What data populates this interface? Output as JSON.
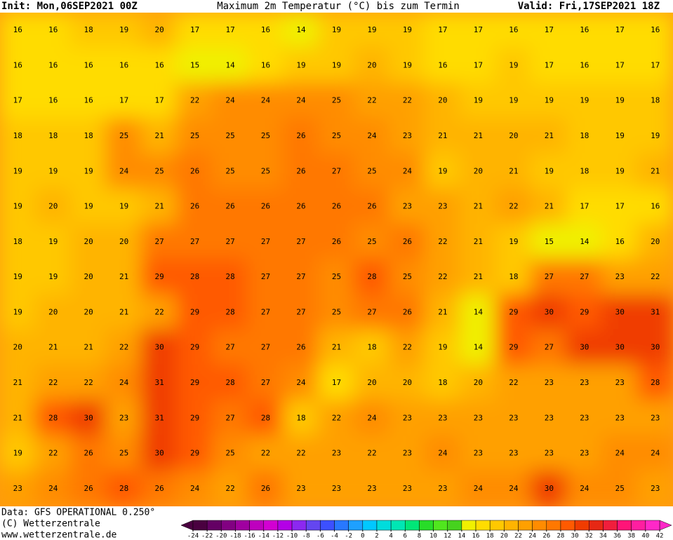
{
  "header": {
    "init": "Init: Mon,06SEP2021 00Z",
    "title": "Maximum 2m Temperatur (°C) bis zum Termin",
    "valid": "Valid: Fri,17SEP2021 18Z"
  },
  "map": {
    "values": [
      [
        16,
        16,
        18,
        19,
        20,
        17,
        17,
        16,
        14,
        19,
        19,
        19,
        17,
        17,
        16,
        17,
        16,
        17,
        16
      ],
      [
        16,
        16,
        16,
        16,
        16,
        15,
        14,
        16,
        19,
        19,
        20,
        19,
        16,
        17,
        19,
        17,
        16,
        17,
        17
      ],
      [
        17,
        16,
        16,
        17,
        17,
        22,
        24,
        24,
        24,
        25,
        22,
        22,
        20,
        19,
        19,
        19,
        19,
        19,
        18
      ],
      [
        18,
        18,
        18,
        25,
        21,
        25,
        25,
        25,
        26,
        25,
        24,
        23,
        21,
        21,
        20,
        21,
        18,
        19,
        19
      ],
      [
        19,
        19,
        19,
        24,
        25,
        26,
        25,
        25,
        26,
        27,
        25,
        24,
        19,
        20,
        21,
        19,
        18,
        19,
        21
      ],
      [
        19,
        20,
        19,
        19,
        21,
        26,
        26,
        26,
        26,
        26,
        26,
        23,
        23,
        21,
        22,
        21,
        17,
        17,
        16
      ],
      [
        18,
        19,
        20,
        20,
        27,
        27,
        27,
        27,
        27,
        26,
        25,
        26,
        22,
        21,
        19,
        15,
        14,
        16,
        20
      ],
      [
        19,
        19,
        20,
        21,
        29,
        28,
        28,
        27,
        27,
        25,
        28,
        25,
        22,
        21,
        18,
        27,
        27,
        23,
        22
      ],
      [
        19,
        20,
        20,
        21,
        22,
        29,
        28,
        27,
        27,
        25,
        27,
        26,
        21,
        14,
        29,
        30,
        29,
        30,
        31
      ],
      [
        20,
        21,
        21,
        22,
        30,
        29,
        27,
        27,
        26,
        21,
        18,
        22,
        19,
        14,
        29,
        27,
        30,
        30,
        30
      ],
      [
        21,
        22,
        22,
        24,
        31,
        29,
        28,
        27,
        24,
        17,
        20,
        20,
        18,
        20,
        22,
        23,
        23,
        23,
        28
      ],
      [
        21,
        28,
        30,
        23,
        31,
        29,
        27,
        28,
        18,
        22,
        24,
        23,
        23,
        23,
        23,
        23,
        23,
        23,
        23
      ],
      [
        19,
        22,
        26,
        25,
        30,
        29,
        25,
        22,
        22,
        23,
        22,
        23,
        24,
        23,
        23,
        23,
        23,
        24,
        24
      ],
      [
        23,
        24,
        26,
        28,
        26,
        24,
        22,
        26,
        23,
        23,
        23,
        23,
        23,
        24,
        24,
        30,
        24,
        25,
        23
      ]
    ]
  },
  "colorbar": {
    "ticks": [
      -24,
      -22,
      -20,
      -18,
      -16,
      -14,
      -12,
      -10,
      -8,
      -6,
      -4,
      -2,
      0,
      2,
      4,
      6,
      8,
      10,
      12,
      14,
      16,
      18,
      20,
      22,
      24,
      26,
      28,
      30,
      32,
      34,
      36,
      38,
      40,
      42
    ],
    "colors": [
      "#4a0040",
      "#640064",
      "#820082",
      "#a000a0",
      "#be00be",
      "#d200d2",
      "#b400e6",
      "#8c28f0",
      "#6446f0",
      "#3c50ff",
      "#2878ff",
      "#1ea0ff",
      "#00c8ff",
      "#00dcdc",
      "#00e6b4",
      "#00e678",
      "#28dc28",
      "#50e61e",
      "#46d21e",
      "#f0f000",
      "#ffdc00",
      "#ffc800",
      "#ffb400",
      "#ffa000",
      "#ff8c00",
      "#ff7800",
      "#ff5a00",
      "#f03c00",
      "#e62814",
      "#f01e3c",
      "#ff1478",
      "#ff1ea0",
      "#ff28c8"
    ]
  },
  "footer": {
    "data": "Data: GFS OPERATIONAL 0.250°",
    "copyright": "(C) Wetterzentrale",
    "url": "www.wetterzentrale.de"
  }
}
